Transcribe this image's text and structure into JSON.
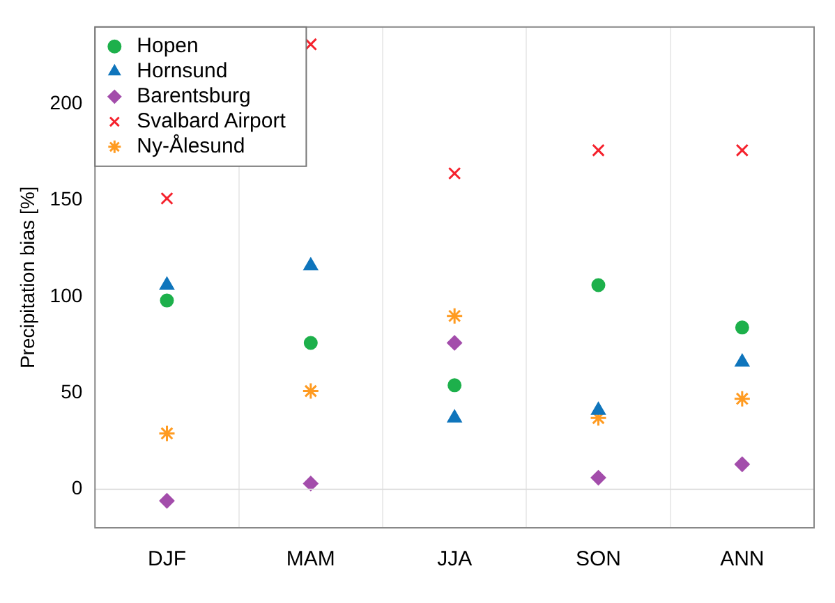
{
  "chart_data": {
    "type": "scatter",
    "ylabel": "Precipitation bias [%]",
    "categories": [
      "DJF",
      "MAM",
      "JJA",
      "SON",
      "ANN"
    ],
    "series": [
      {
        "name": "Hopen",
        "color": "#1db04b",
        "marker": "circle",
        "values": [
          98,
          76,
          54,
          106,
          84
        ]
      },
      {
        "name": "Hornsund",
        "color": "#0f75bc",
        "marker": "triangle",
        "values": [
          106,
          116,
          37,
          41,
          66
        ]
      },
      {
        "name": "Barentsburg",
        "color": "#a34dab",
        "marker": "diamond",
        "values": [
          -6,
          3,
          76,
          6,
          13
        ]
      },
      {
        "name": "Svalbard Airport",
        "color": "#f5222d",
        "marker": "cross",
        "values": [
          151,
          231,
          164,
          176,
          176
        ]
      },
      {
        "name": "Ny-Ålesund",
        "color": "#ff9b21",
        "marker": "cross",
        "values": [
          29,
          51,
          90,
          37,
          47
        ]
      }
    ],
    "ylim": [
      -20,
      240
    ],
    "yticks": [
      0,
      50,
      100,
      150,
      200
    ],
    "ref_lines": [
      {
        "axis": "y",
        "value": 0,
        "color": "#dddddd"
      }
    ],
    "grid": "x",
    "legend": "top left"
  }
}
